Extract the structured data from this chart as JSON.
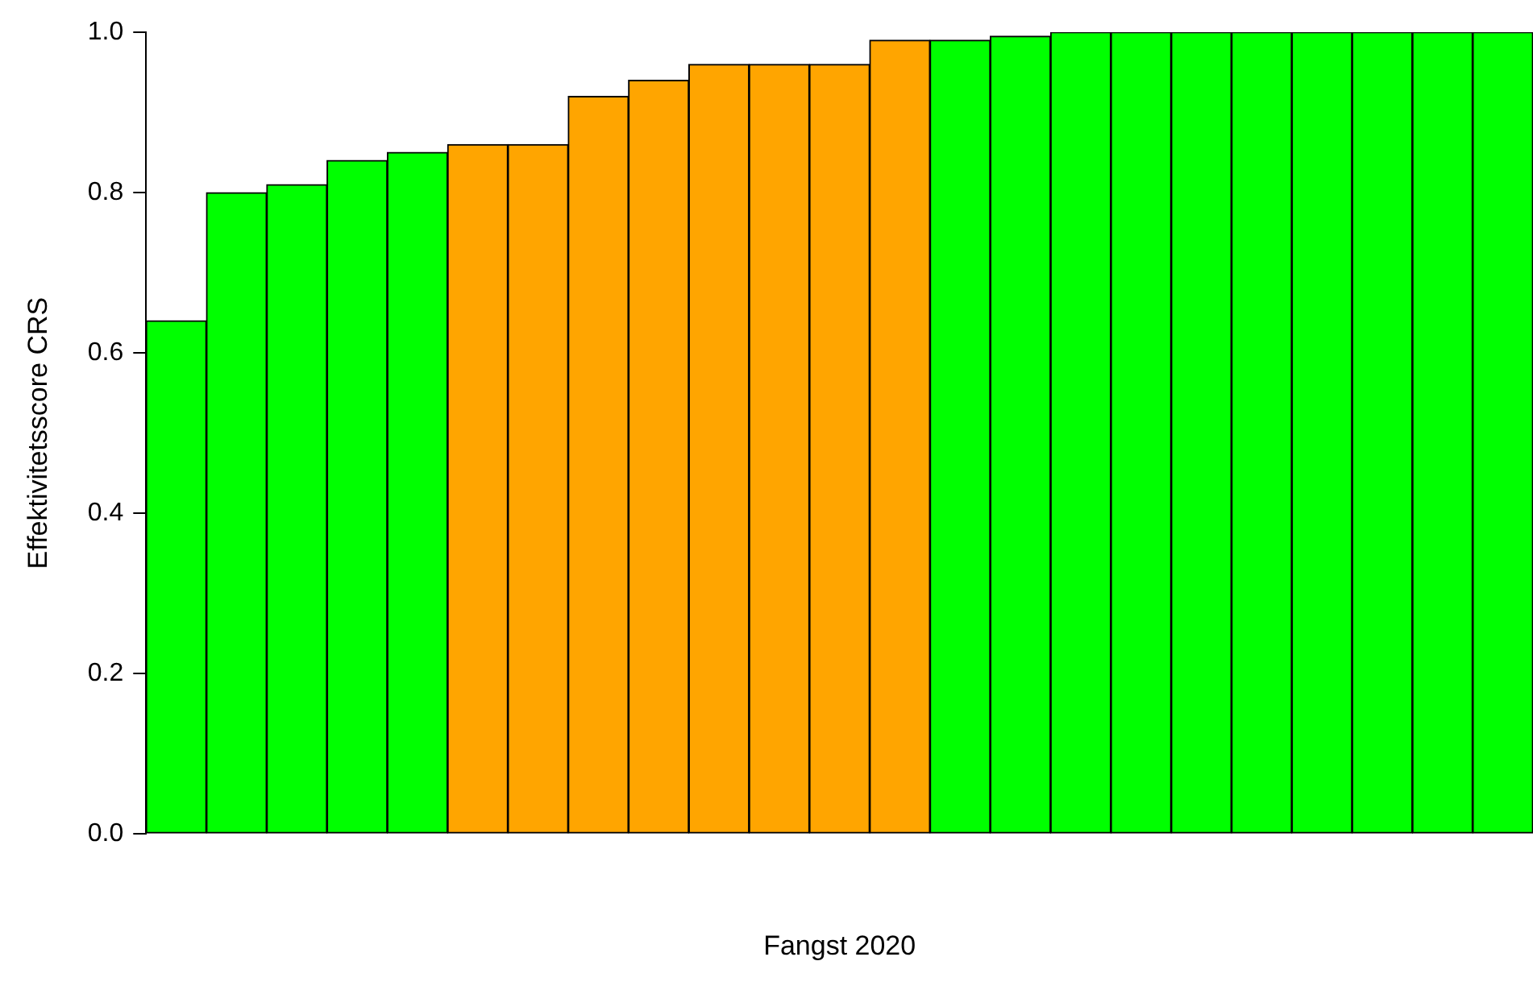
{
  "chart_data": {
    "type": "bar",
    "xlabel": "Fangst 2020",
    "ylabel": "Effektivitetsscore CRS",
    "categories": [
      null,
      null,
      null,
      null,
      null,
      null,
      null,
      null,
      null,
      null,
      null,
      null,
      null,
      null,
      null,
      null,
      null,
      null,
      null,
      null,
      null,
      null,
      null
    ],
    "values": [
      0.64,
      0.8,
      0.81,
      0.84,
      0.85,
      0.86,
      0.86,
      0.92,
      0.94,
      0.96,
      0.96,
      0.96,
      0.99,
      0.99,
      0.995,
      1.0,
      1.0,
      1.0,
      1.0,
      1.0,
      1.0,
      1.0,
      1.0
    ],
    "colors": [
      "#00ff00",
      "#00ff00",
      "#00ff00",
      "#00ff00",
      "#00ff00",
      "#ffa500",
      "#ffa500",
      "#ffa500",
      "#ffa500",
      "#ffa500",
      "#ffa500",
      "#ffa500",
      "#ffa500",
      "#00ff00",
      "#00ff00",
      "#00ff00",
      "#00ff00",
      "#00ff00",
      "#00ff00",
      "#00ff00",
      "#00ff00",
      "#00ff00",
      "#00ff00"
    ],
    "ylim": [
      0,
      1
    ],
    "yticks": [
      {
        "value": 0,
        "label": "0.0"
      },
      {
        "value": 0.2,
        "label": "0.2"
      },
      {
        "value": 0.4,
        "label": "0.4"
      },
      {
        "value": 0.6,
        "label": "0.6"
      },
      {
        "value": 0.8,
        "label": "0.8"
      },
      {
        "value": 1,
        "label": "1.0"
      }
    ],
    "grid": false,
    "legend": false,
    "tick_labels": "y"
  }
}
